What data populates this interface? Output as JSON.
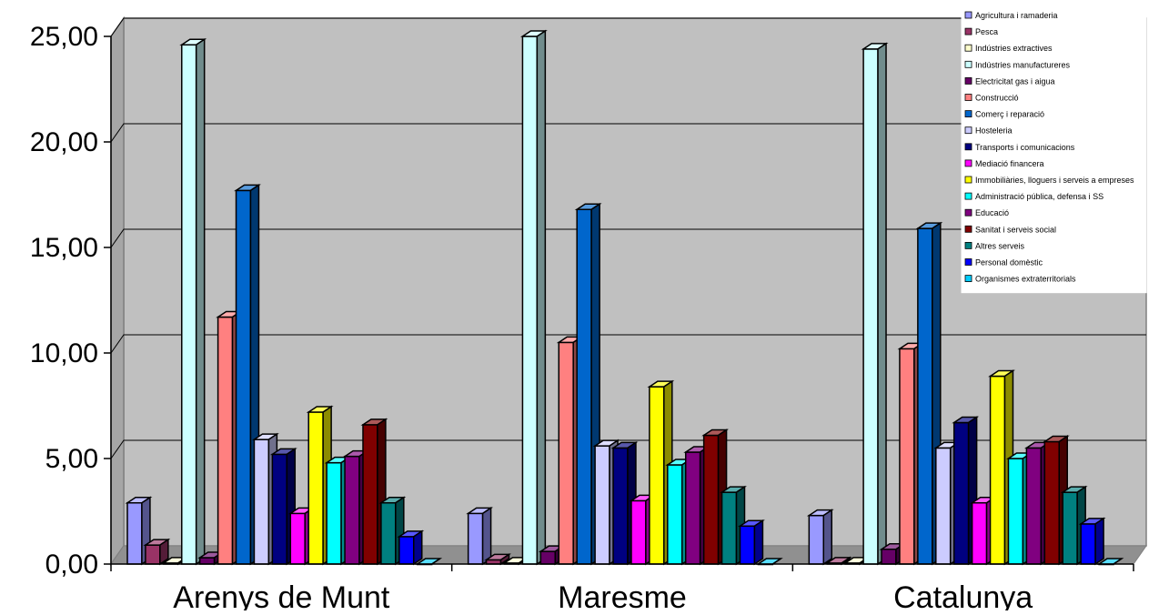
{
  "chart_data": {
    "type": "bar",
    "title": "",
    "xlabel": "",
    "ylabel": "",
    "ylim": [
      0,
      25
    ],
    "yticks": [
      "0,00",
      "5,00",
      "10,00",
      "15,00",
      "20,00",
      "25,00"
    ],
    "grid": true,
    "legend_position": "top-right",
    "categories": [
      "Arenys de Munt",
      "Maresme",
      "Catalunya"
    ],
    "series": [
      {
        "name": "Agricultura i ramaderia",
        "color": "#9999ff",
        "values": [
          2.9,
          2.4,
          2.3
        ]
      },
      {
        "name": "Pesca",
        "color": "#993366",
        "values": [
          0.9,
          0.2,
          0.05
        ]
      },
      {
        "name": "Indústries extractives",
        "color": "#ffffcc",
        "values": [
          0.05,
          0.05,
          0.05
        ]
      },
      {
        "name": "Indústries manufactureres",
        "color": "#ccffff",
        "values": [
          24.6,
          25.0,
          24.4
        ]
      },
      {
        "name": "Electricitat gas i aigua",
        "color": "#660066",
        "values": [
          0.3,
          0.6,
          0.7
        ]
      },
      {
        "name": "Construcció",
        "color": "#ff8080",
        "values": [
          11.7,
          10.5,
          10.2
        ]
      },
      {
        "name": "Comerç i reparació",
        "color": "#0066cc",
        "values": [
          17.7,
          16.8,
          15.9
        ]
      },
      {
        "name": "Hosteleria",
        "color": "#ccccff",
        "values": [
          5.9,
          5.6,
          5.5
        ]
      },
      {
        "name": "Transports i comunicacions",
        "color": "#000080",
        "values": [
          5.2,
          5.5,
          6.7
        ]
      },
      {
        "name": "Mediació financera",
        "color": "#ff00ff",
        "values": [
          2.4,
          3.0,
          2.9
        ]
      },
      {
        "name": "Immobiliàries, lloguers i serveis a empreses",
        "color": "#ffff00",
        "values": [
          7.2,
          8.4,
          8.9
        ]
      },
      {
        "name": "Administració pública, defensa i SS",
        "color": "#00ffff",
        "values": [
          4.8,
          4.7,
          5.0
        ]
      },
      {
        "name": "Educació",
        "color": "#800080",
        "values": [
          5.1,
          5.3,
          5.5
        ]
      },
      {
        "name": "Sanitat i serveis social",
        "color": "#800000",
        "values": [
          6.6,
          6.1,
          5.8
        ]
      },
      {
        "name": "Altres serveis",
        "color": "#008080",
        "values": [
          2.9,
          3.4,
          3.4
        ]
      },
      {
        "name": "Personal domèstic",
        "color": "#0000ff",
        "values": [
          1.3,
          1.8,
          1.9
        ]
      },
      {
        "name": "Organismes extraterritorials",
        "color": "#00ccff",
        "values": [
          0.0,
          0.0,
          0.0
        ]
      }
    ]
  }
}
